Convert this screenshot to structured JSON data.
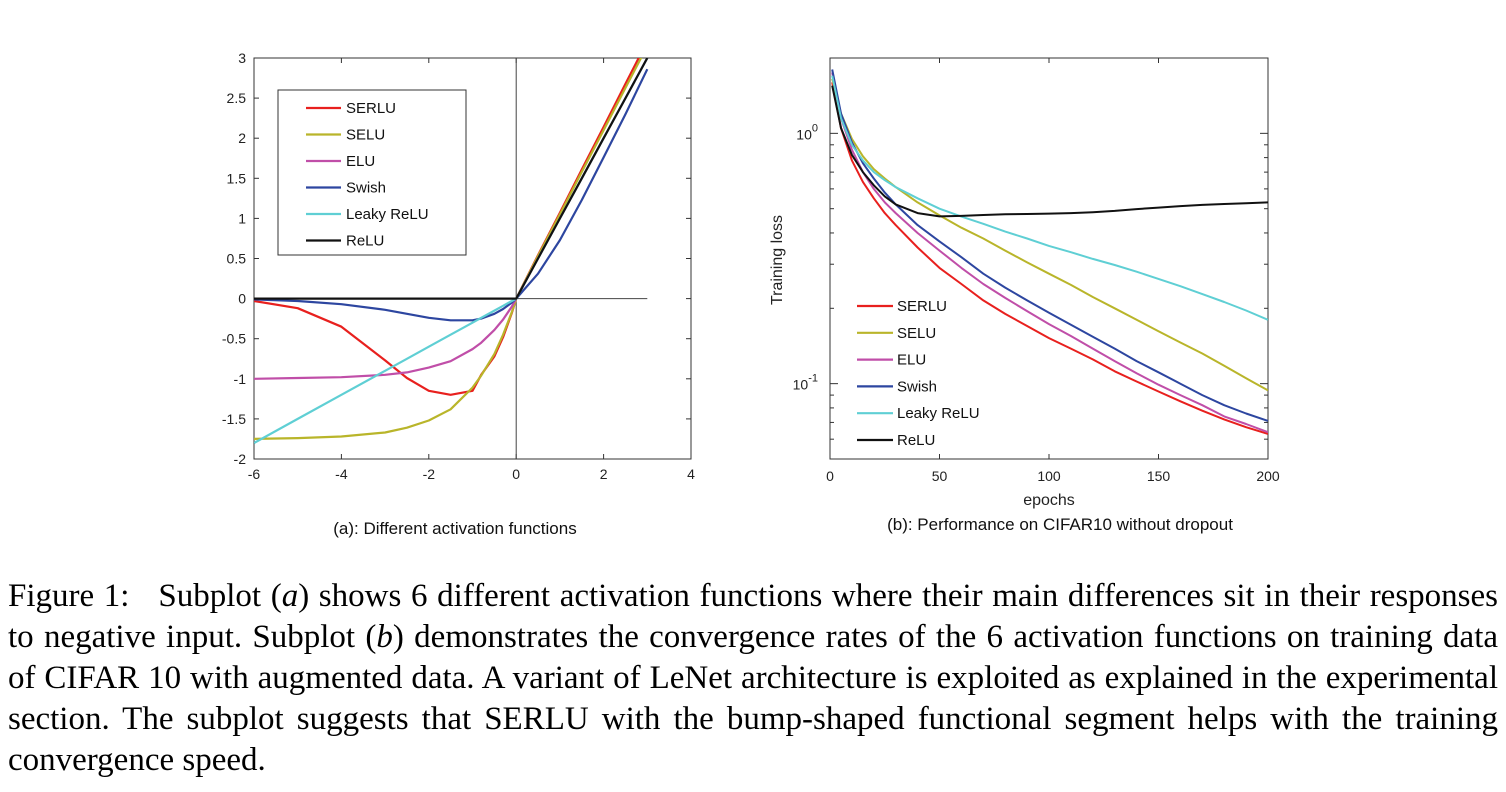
{
  "figure": {
    "caption_label": "Figure 1:",
    "caption_parts": {
      "p1": "Subplot (",
      "a": "a",
      "p2": ") shows 6 different activation functions where their main differences sit in their responses to negative input. Subplot (",
      "b": "b",
      "p3": ") demonstrates the convergence rates of the 6 activation functions on training data of CIFAR 10 with augmented data. A variant of LeNet architecture is exploited as explained in the experimental section. The subplot suggests that SERLU with the bump-shaped functional segment helps with the training convergence speed."
    }
  },
  "colors": {
    "SERLU": "#e8201e",
    "SELU": "#b9b52a",
    "ELU": "#c04ea8",
    "Swish": "#2d46a0",
    "Leaky ReLU": "#5fcfd4",
    "ReLU": "#111111"
  },
  "chart_data": [
    {
      "type": "line",
      "caption": "(a): Different activation functions",
      "xlim": [
        -6,
        4
      ],
      "ylim": [
        -2,
        3
      ],
      "xticks": [
        -6,
        -4,
        -2,
        0,
        2,
        4
      ],
      "xtick_labels": [
        "-6",
        "-4",
        "-2",
        "0",
        "2",
        "4"
      ],
      "yticks": [
        -2,
        -1.5,
        -1,
        -0.5,
        0,
        0.5,
        1,
        1.5,
        2,
        2.5,
        3
      ],
      "ytick_labels": [
        "-2",
        "-1.5",
        "-1",
        "-0.5",
        "0",
        "0.5",
        "1",
        "1.5",
        "2",
        "2.5",
        "3"
      ],
      "legend_position": "top-left",
      "x": [
        -6,
        -5,
        -4,
        -3,
        -2.5,
        -2,
        -1.5,
        -1,
        -0.8,
        -0.5,
        -0.3,
        -0.1,
        0,
        0.5,
        1,
        1.5,
        2,
        2.5,
        3
      ],
      "series": [
        {
          "name": "SERLU",
          "values": [
            -0.03,
            -0.12,
            -0.35,
            -0.77,
            -0.99,
            -1.15,
            -1.2,
            -1.15,
            -0.95,
            -0.72,
            -0.48,
            -0.18,
            0,
            0.54,
            1.07,
            1.61,
            2.14,
            2.68,
            3.21
          ]
        },
        {
          "name": "SELU",
          "values": [
            -1.75,
            -1.74,
            -1.72,
            -1.67,
            -1.61,
            -1.52,
            -1.38,
            -1.11,
            -0.96,
            -0.69,
            -0.45,
            -0.17,
            0,
            0.53,
            1.05,
            1.58,
            2.1,
            2.63,
            3.15
          ]
        },
        {
          "name": "ELU",
          "values": [
            -1.0,
            -0.99,
            -0.98,
            -0.95,
            -0.92,
            -0.86,
            -0.78,
            -0.63,
            -0.55,
            -0.39,
            -0.26,
            -0.1,
            0,
            0.5,
            1.0,
            1.5,
            2.0,
            2.5,
            3.0
          ]
        },
        {
          "name": "Swish",
          "values": [
            -0.01,
            -0.03,
            -0.07,
            -0.14,
            -0.19,
            -0.24,
            -0.27,
            -0.27,
            -0.25,
            -0.19,
            -0.13,
            -0.05,
            0,
            0.31,
            0.73,
            1.23,
            1.76,
            2.3,
            2.86
          ]
        },
        {
          "name": "Leaky ReLU",
          "values": [
            -1.8,
            -1.5,
            -1.2,
            -0.9,
            -0.75,
            -0.6,
            -0.45,
            -0.3,
            -0.24,
            -0.15,
            -0.09,
            -0.03,
            0,
            0.5,
            1.0,
            1.5,
            2.0,
            2.5,
            3.0
          ]
        },
        {
          "name": "ReLU",
          "values": [
            0,
            0,
            0,
            0,
            0,
            0,
            0,
            0,
            0,
            0,
            0,
            0,
            0,
            0.5,
            1.0,
            1.5,
            2.0,
            2.5,
            3.0
          ]
        }
      ]
    },
    {
      "type": "line",
      "caption": "(b): Performance on CIFAR10 without dropout",
      "xlabel": "epochs",
      "ylabel": "Training loss",
      "yscale": "log",
      "xlim": [
        0,
        200
      ],
      "ylim": [
        0.05,
        2.0
      ],
      "xticks": [
        0,
        50,
        100,
        150,
        200
      ],
      "xtick_labels": [
        "0",
        "50",
        "100",
        "150",
        "200"
      ],
      "ytick_major": [
        {
          "base": "10",
          "exp": "0",
          "value": 1
        },
        {
          "base": "10",
          "exp": "-1",
          "value": 0.1
        }
      ],
      "legend_position": "bottom-left",
      "x": [
        1,
        5,
        10,
        15,
        20,
        25,
        30,
        40,
        50,
        60,
        70,
        80,
        90,
        100,
        110,
        120,
        130,
        140,
        150,
        160,
        170,
        180,
        190,
        200
      ],
      "series": [
        {
          "name": "SERLU",
          "values": [
            1.6,
            1.05,
            0.78,
            0.64,
            0.55,
            0.48,
            0.43,
            0.35,
            0.29,
            0.25,
            0.215,
            0.19,
            0.17,
            0.152,
            0.138,
            0.125,
            0.112,
            0.102,
            0.093,
            0.085,
            0.078,
            0.072,
            0.067,
            0.063
          ]
        },
        {
          "name": "SELU",
          "values": [
            1.65,
            1.2,
            0.95,
            0.81,
            0.72,
            0.66,
            0.61,
            0.53,
            0.47,
            0.42,
            0.38,
            0.34,
            0.305,
            0.275,
            0.248,
            0.222,
            0.2,
            0.18,
            0.162,
            0.146,
            0.132,
            0.118,
            0.105,
            0.094
          ]
        },
        {
          "name": "ELU",
          "values": [
            1.75,
            1.15,
            0.86,
            0.7,
            0.6,
            0.53,
            0.48,
            0.4,
            0.34,
            0.29,
            0.25,
            0.22,
            0.195,
            0.173,
            0.155,
            0.138,
            0.123,
            0.11,
            0.099,
            0.09,
            0.082,
            0.074,
            0.069,
            0.064
          ]
        },
        {
          "name": "Swish",
          "values": [
            1.8,
            1.2,
            0.92,
            0.76,
            0.66,
            0.58,
            0.52,
            0.43,
            0.37,
            0.32,
            0.275,
            0.242,
            0.215,
            0.192,
            0.172,
            0.154,
            0.138,
            0.123,
            0.111,
            0.1,
            0.09,
            0.082,
            0.076,
            0.071
          ]
        },
        {
          "name": "Leaky ReLU",
          "values": [
            1.7,
            1.15,
            0.9,
            0.78,
            0.7,
            0.65,
            0.61,
            0.55,
            0.5,
            0.465,
            0.435,
            0.405,
            0.38,
            0.355,
            0.335,
            0.315,
            0.298,
            0.28,
            0.262,
            0.245,
            0.228,
            0.212,
            0.196,
            0.18
          ]
        },
        {
          "name": "ReLU",
          "values": [
            1.55,
            1.05,
            0.82,
            0.7,
            0.62,
            0.56,
            0.52,
            0.48,
            0.466,
            0.468,
            0.472,
            0.475,
            0.476,
            0.478,
            0.48,
            0.484,
            0.49,
            0.498,
            0.505,
            0.512,
            0.518,
            0.522,
            0.526,
            0.53
          ]
        }
      ]
    }
  ]
}
